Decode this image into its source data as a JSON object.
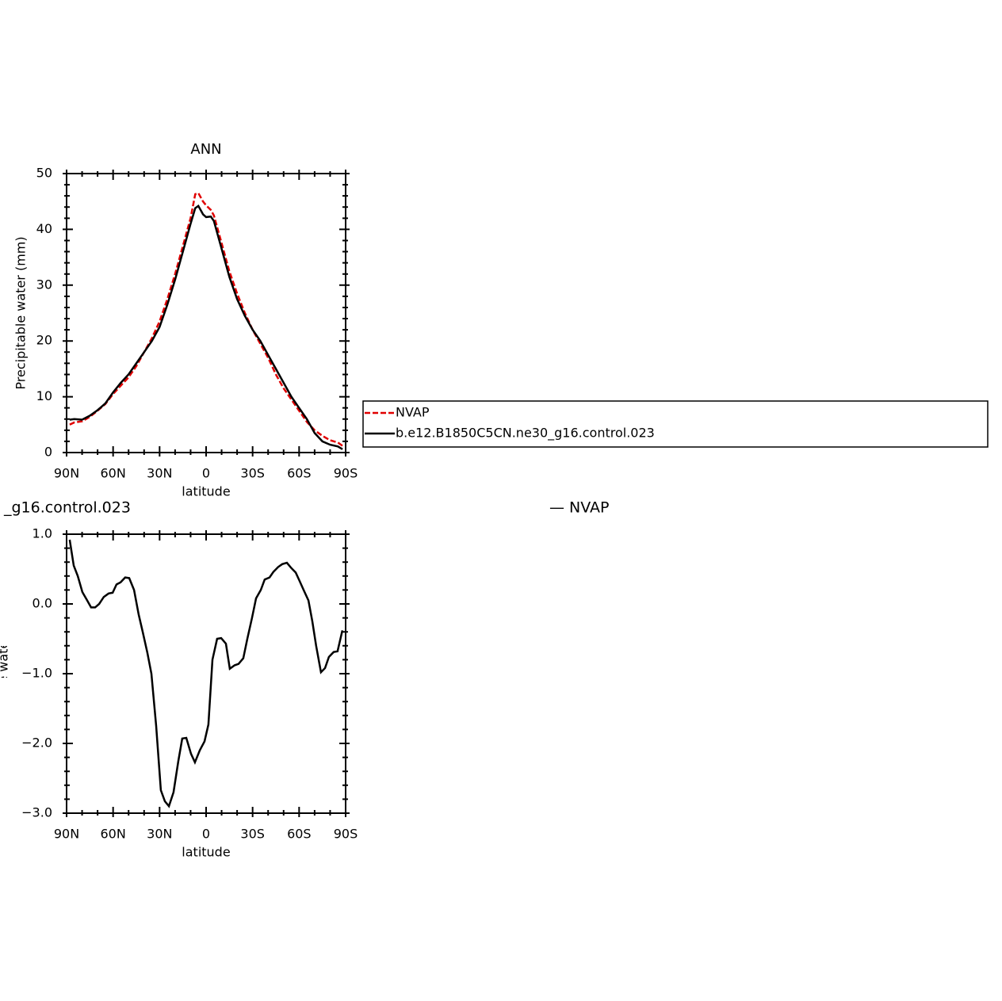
{
  "chart_data": [
    {
      "type": "line",
      "title": "ANN",
      "xlabel": "latitude",
      "ylabel": "Precipitable water (mm)",
      "x": [
        88,
        85,
        80,
        75,
        70,
        65,
        60,
        55,
        50,
        45,
        40,
        35,
        30,
        25,
        20,
        15,
        10,
        7,
        5,
        2,
        0,
        -3,
        -5,
        -10,
        -15,
        -20,
        -25,
        -30,
        -35,
        -40,
        -45,
        -50,
        -55,
        -60,
        -65,
        -70,
        -75,
        -80,
        -85,
        -88
      ],
      "series": [
        {
          "name": "NVAP",
          "color": "#e00000",
          "dashed": true,
          "values": [
            5.0,
            5.4,
            5.6,
            6.4,
            7.5,
            8.7,
            10.5,
            12.0,
            13.5,
            15.5,
            18.0,
            20.5,
            23.5,
            27.5,
            32.0,
            37.0,
            42.0,
            46.3,
            46.5,
            45.0,
            44.3,
            43.5,
            42.5,
            37.5,
            32.5,
            28.5,
            25.0,
            22.0,
            19.5,
            17.0,
            14.0,
            11.5,
            9.5,
            7.5,
            5.5,
            4.0,
            3.0,
            2.2,
            1.8,
            1.2
          ]
        },
        {
          "name": "b.e12.B1850C5CN.ne30_g16.control.023",
          "color": "#000000",
          "dashed": false,
          "values": [
            5.9,
            6.0,
            5.9,
            6.6,
            7.6,
            8.8,
            10.8,
            12.5,
            14.0,
            16.0,
            18.0,
            20.0,
            22.5,
            26.5,
            31.0,
            36.0,
            41.0,
            43.8,
            44.2,
            42.7,
            42.2,
            42.3,
            41.5,
            36.5,
            31.5,
            27.5,
            24.5,
            22.0,
            20.0,
            17.5,
            15.0,
            12.5,
            10.0,
            8.0,
            6.0,
            3.5,
            2.0,
            1.4,
            1.1,
            0.6
          ]
        }
      ],
      "xlim": [
        90,
        -90
      ],
      "xticks": [
        {
          "value": 90,
          "label": "90N"
        },
        {
          "value": 60,
          "label": "60N"
        },
        {
          "value": 30,
          "label": "30N"
        },
        0,
        {
          "value": -30,
          "label": "30S"
        },
        {
          "value": -60,
          "label": "60S"
        },
        {
          "value": -90,
          "label": "90S"
        }
      ],
      "minor_xticks": [
        80,
        70,
        50,
        40,
        20,
        10,
        -10,
        -20,
        -40,
        -50,
        -70,
        -80
      ],
      "ylim": [
        0,
        50
      ],
      "yticks": [
        0,
        10,
        20,
        30,
        40,
        50
      ],
      "minor_yticks": [
        2,
        4,
        6,
        8,
        12,
        14,
        16,
        18,
        22,
        24,
        26,
        28,
        32,
        34,
        36,
        38,
        42,
        44,
        46,
        48
      ]
    },
    {
      "type": "line",
      "title_left": "_g16.control.023",
      "title_right": "— NVAP",
      "xlabel": "latitude",
      "ylabel": "Precipitable water (mm)",
      "x": [
        88,
        85.4,
        82.8,
        79.8,
        76.7,
        74.2,
        71.6,
        69,
        66,
        62.9,
        60.3,
        57.8,
        55.2,
        52.2,
        49.6,
        46.5,
        43.5,
        40.9,
        37.9,
        35.3,
        32.2,
        29.2,
        26.6,
        24,
        21,
        17.9,
        15.4,
        12.8,
        9.7,
        7.2,
        4.1,
        1.0,
        -1.5,
        -4.1,
        -7.1,
        -9.7,
        -12.8,
        -15.3,
        -18.4,
        -20.9,
        -24.0,
        -26.6,
        -29.6,
        -32.2,
        -35.3,
        -37.8,
        -40.9,
        -43.4,
        -46.5,
        -49.1,
        -52.1,
        -54.7,
        -57.8,
        -60.3,
        -62.9,
        -66,
        -68.5,
        -71,
        -74.1,
        -76.7,
        -79.2,
        -82.3,
        -84.8,
        -87.9
      ],
      "color": "#000000",
      "values": [
        0.92,
        0.55,
        0.4,
        0.17,
        0.05,
        -0.05,
        -0.05,
        0.0,
        0.1,
        0.15,
        0.16,
        0.28,
        0.31,
        0.38,
        0.37,
        0.2,
        -0.15,
        -0.4,
        -0.7,
        -1.0,
        -1.75,
        -2.67,
        -2.83,
        -2.9,
        -2.7,
        -2.25,
        -1.93,
        -1.92,
        -2.15,
        -2.27,
        -2.1,
        -1.97,
        -1.73,
        -0.8,
        -0.5,
        -0.49,
        -0.57,
        -0.93,
        -0.88,
        -0.86,
        -0.78,
        -0.5,
        -0.2,
        0.08,
        0.2,
        0.35,
        0.38,
        0.46,
        0.53,
        0.57,
        0.59,
        0.52,
        0.45,
        0.33,
        0.2,
        0.05,
        -0.25,
        -0.6,
        -0.98,
        -0.92,
        -0.76,
        -0.69,
        -0.68,
        -0.38
      ],
      "xlim": [
        90,
        -90
      ],
      "xticks": [
        {
          "value": 90,
          "label": "90N"
        },
        {
          "value": 60,
          "label": "60N"
        },
        {
          "value": 30,
          "label": "30N"
        },
        0,
        {
          "value": -30,
          "label": "30S"
        },
        {
          "value": -60,
          "label": "60S"
        },
        {
          "value": -90,
          "label": "90S"
        }
      ],
      "minor_xticks": [
        80,
        70,
        50,
        40,
        20,
        10,
        -10,
        -20,
        -40,
        -50,
        -70,
        -80
      ],
      "ylim": [
        -3,
        1
      ],
      "yticks": [
        {
          "value": 1,
          "label": "1.0"
        },
        {
          "value": 0,
          "label": "0.0"
        },
        {
          "value": -1,
          "label": "−1.0"
        },
        {
          "value": -2,
          "label": "−2.0"
        },
        {
          "value": -3,
          "label": "−3.0"
        }
      ],
      "minor_yticks": [
        0.8,
        0.6,
        0.4,
        0.2,
        -0.2,
        -0.4,
        -0.6,
        -0.8,
        -1.2,
        -1.4,
        -1.6,
        -1.8,
        -2.2,
        -2.4,
        -2.6,
        -2.8
      ]
    }
  ]
}
